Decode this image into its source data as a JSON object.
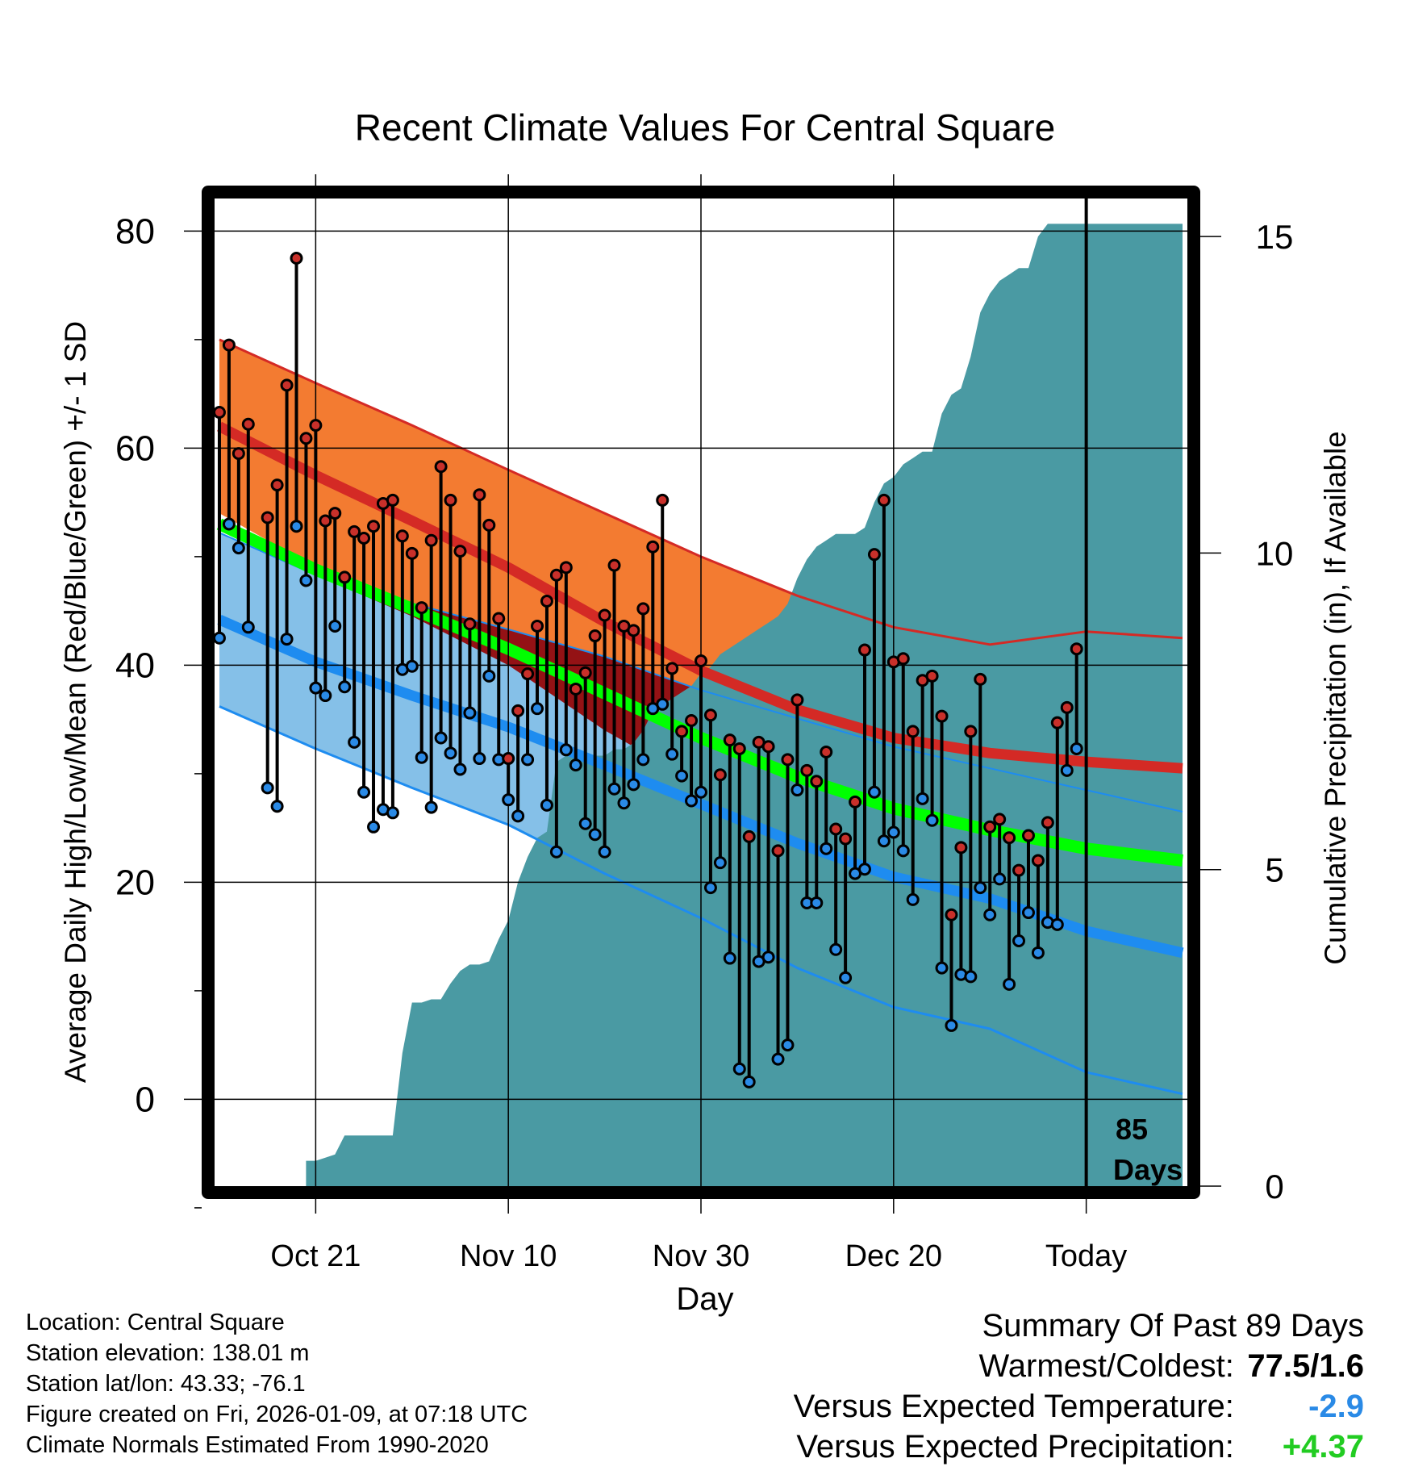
{
  "colors": {
    "orange": "#f37b31",
    "light_blue": "#85c0e8",
    "dark_red": "#941215",
    "green": "#00ff00",
    "blue_line": "#1e8cf0",
    "red_line": "#d42a25",
    "precip": "#4a9aa3",
    "high_dot": "#c8302a",
    "low_dot": "#2a8ae6",
    "anom_temp": "#2a8ae6",
    "anom_precip": "#22cc22"
  },
  "chart_data": {
    "type": "line",
    "title": "Recent Climate Values For Central Square",
    "xlabel": "Day",
    "ylabel_left": "Average Daily High/Low/Mean (Red/Blue/Green) +/- 1 SD",
    "ylabel_right": "Cumulative Precipitation (in), If Available",
    "xlim": [
      -10.5,
      90.5
    ],
    "ylim_left": [
      -8,
      83
    ],
    "ylim_right": [
      0,
      15.6
    ],
    "x_ticks": [
      {
        "x": 0,
        "label": "Oct 21"
      },
      {
        "x": 20,
        "label": "Nov 10"
      },
      {
        "x": 40,
        "label": "Nov 30"
      },
      {
        "x": 60,
        "label": "Dec 20"
      },
      {
        "x": 80,
        "label": "Today"
      }
    ],
    "y_ticks_left": [
      0,
      20,
      40,
      60,
      80
    ],
    "y_ticks_right": [
      0,
      5,
      10,
      15
    ],
    "today_x": 80,
    "today_annotation": [
      "85",
      "Days"
    ],
    "normals": {
      "x": [
        -10,
        0,
        10,
        20,
        30,
        40,
        50,
        60,
        70,
        80,
        90
      ],
      "high_mean": [
        62,
        57.5,
        53.3,
        49,
        44,
        39.5,
        35.9,
        33.3,
        31.9,
        31.1,
        30.5
      ],
      "high_sd": [
        8,
        8.5,
        8.8,
        9,
        10,
        10.5,
        10.5,
        10.2,
        10,
        12,
        12
      ],
      "low_mean": [
        44.2,
        40.3,
        37.2,
        34.3,
        30.8,
        27.2,
        23.6,
        20.5,
        18.5,
        15.5,
        13.5
      ],
      "low_sd": [
        8,
        8,
        8.5,
        9,
        10,
        10.5,
        11.5,
        12,
        12,
        13,
        13
      ],
      "mean": [
        53,
        48.8,
        45.2,
        41.5,
        37.4,
        33.3,
        29.7,
        26.8,
        24.8,
        23.1,
        22
      ]
    },
    "observations": [
      {
        "x": -10,
        "high": 63.3,
        "low": 42.5
      },
      {
        "x": -9,
        "high": 69.5,
        "low": 53
      },
      {
        "x": -8,
        "high": 59.5,
        "low": 50.8
      },
      {
        "x": -7,
        "high": 62.2,
        "low": 43.5
      },
      {
        "x": -5,
        "high": 53.6,
        "low": 28.7
      },
      {
        "x": -4,
        "high": 56.6,
        "low": 27
      },
      {
        "x": -3,
        "high": 65.8,
        "low": 42.4
      },
      {
        "x": -2,
        "high": 77.5,
        "low": 52.8
      },
      {
        "x": -1,
        "high": 60.9,
        "low": 47.8
      },
      {
        "x": 0,
        "high": 62.1,
        "low": 37.9
      },
      {
        "x": 1,
        "high": 53.3,
        "low": 37.2
      },
      {
        "x": 2,
        "high": 54,
        "low": 43.6
      },
      {
        "x": 3,
        "high": 48.1,
        "low": 38
      },
      {
        "x": 4,
        "high": 52.3,
        "low": 32.9
      },
      {
        "x": 5,
        "high": 51.7,
        "low": 28.3
      },
      {
        "x": 6,
        "high": 52.8,
        "low": 25.1
      },
      {
        "x": 7,
        "high": 54.9,
        "low": 26.7
      },
      {
        "x": 8,
        "high": 55.2,
        "low": 26.4
      },
      {
        "x": 9,
        "high": 51.9,
        "low": 39.6
      },
      {
        "x": 10,
        "high": 50.3,
        "low": 39.9
      },
      {
        "x": 11,
        "high": 45.3,
        "low": 31.5
      },
      {
        "x": 12,
        "high": 51.5,
        "low": 26.9
      },
      {
        "x": 13,
        "high": 58.3,
        "low": 33.3
      },
      {
        "x": 14,
        "high": 55.2,
        "low": 31.9
      },
      {
        "x": 15,
        "high": 50.5,
        "low": 30.4
      },
      {
        "x": 16,
        "high": 43.8,
        "low": 35.6
      },
      {
        "x": 17,
        "high": 55.7,
        "low": 31.4
      },
      {
        "x": 18,
        "high": 52.9,
        "low": 39
      },
      {
        "x": 19,
        "high": 44.3,
        "low": 31.3
      },
      {
        "x": 20,
        "high": 31.4,
        "low": 27.6
      },
      {
        "x": 21,
        "high": 35.8,
        "low": 26.1
      },
      {
        "x": 22,
        "high": 39.2,
        "low": 31.3
      },
      {
        "x": 23,
        "high": 43.6,
        "low": 36
      },
      {
        "x": 24,
        "high": 45.9,
        "low": 27.1
      },
      {
        "x": 25,
        "high": 48.3,
        "low": 22.8
      },
      {
        "x": 26,
        "high": 49,
        "low": 32.2
      },
      {
        "x": 27,
        "high": 37.8,
        "low": 30.8
      },
      {
        "x": 28,
        "high": 39.3,
        "low": 25.4
      },
      {
        "x": 29,
        "high": 42.7,
        "low": 24.4
      },
      {
        "x": 30,
        "high": 44.6,
        "low": 22.8
      },
      {
        "x": 31,
        "high": 49.2,
        "low": 28.6
      },
      {
        "x": 32,
        "high": 43.6,
        "low": 27.3
      },
      {
        "x": 33,
        "high": 43.2,
        "low": 29
      },
      {
        "x": 34,
        "high": 45.2,
        "low": 31.3
      },
      {
        "x": 35,
        "high": 50.9,
        "low": 36
      },
      {
        "x": 36,
        "high": 55.2,
        "low": 36.4
      },
      {
        "x": 37,
        "high": 39.7,
        "low": 31.8
      },
      {
        "x": 38,
        "high": 33.9,
        "low": 29.8
      },
      {
        "x": 39,
        "high": 34.9,
        "low": 27.5
      },
      {
        "x": 40,
        "high": 40.4,
        "low": 28.3
      },
      {
        "x": 41,
        "high": 35.4,
        "low": 19.5
      },
      {
        "x": 42,
        "high": 29.9,
        "low": 21.8
      },
      {
        "x": 43,
        "high": 33.1,
        "low": 13
      },
      {
        "x": 44,
        "high": 32.3,
        "low": 2.8
      },
      {
        "x": 45,
        "high": 24.2,
        "low": 1.6
      },
      {
        "x": 46,
        "high": 32.9,
        "low": 12.7
      },
      {
        "x": 47,
        "high": 32.5,
        "low": 13.1
      },
      {
        "x": 48,
        "high": 22.9,
        "low": 3.7
      },
      {
        "x": 49,
        "high": 31.3,
        "low": 5
      },
      {
        "x": 50,
        "high": 36.8,
        "low": 28.5
      },
      {
        "x": 51,
        "high": 30.3,
        "low": 18.1
      },
      {
        "x": 52,
        "high": 29.3,
        "low": 18.1
      },
      {
        "x": 53,
        "high": 32,
        "low": 23.1
      },
      {
        "x": 54,
        "high": 24.9,
        "low": 13.8
      },
      {
        "x": 55,
        "high": 24,
        "low": 11.2
      },
      {
        "x": 56,
        "high": 27.4,
        "low": 20.8
      },
      {
        "x": 57,
        "high": 41.4,
        "low": 21.2
      },
      {
        "x": 58,
        "high": 50.2,
        "low": 28.3
      },
      {
        "x": 59,
        "high": 55.2,
        "low": 23.8
      },
      {
        "x": 60,
        "high": 40.3,
        "low": 24.6
      },
      {
        "x": 61,
        "high": 40.6,
        "low": 22.9
      },
      {
        "x": 62,
        "high": 33.9,
        "low": 18.4
      },
      {
        "x": 63,
        "high": 38.6,
        "low": 27.7
      },
      {
        "x": 64,
        "high": 39,
        "low": 25.7
      },
      {
        "x": 65,
        "high": 35.3,
        "low": 12.1
      },
      {
        "x": 66,
        "high": 17,
        "low": 6.8
      },
      {
        "x": 67,
        "high": 23.2,
        "low": 11.5
      },
      {
        "x": 68,
        "high": 33.9,
        "low": 11.3
      },
      {
        "x": 69,
        "high": 38.7,
        "low": 19.5
      },
      {
        "x": 70,
        "high": 25.1,
        "low": 17
      },
      {
        "x": 71,
        "high": 25.8,
        "low": 20.3
      },
      {
        "x": 72,
        "high": 24.1,
        "low": 10.6
      },
      {
        "x": 73,
        "high": 21.1,
        "low": 14.6
      },
      {
        "x": 74,
        "high": 24.3,
        "low": 17.2
      },
      {
        "x": 75,
        "high": 22,
        "low": 13.5
      },
      {
        "x": 76,
        "high": 25.5,
        "low": 16.3
      },
      {
        "x": 77,
        "high": 34.7,
        "low": 16.1
      },
      {
        "x": 78,
        "high": 36.1,
        "low": 30.3
      },
      {
        "x": 79,
        "high": 41.5,
        "low": 32.3
      }
    ],
    "precip_cumulative": {
      "x": [
        -1,
        0,
        1,
        2,
        3,
        4,
        5,
        6,
        7,
        8,
        9,
        10,
        11,
        12,
        13,
        14,
        15,
        16,
        17,
        18,
        19,
        20,
        21,
        22,
        23,
        24,
        25,
        26,
        27,
        28,
        29,
        30,
        31,
        32,
        33,
        34,
        35,
        36,
        37,
        38,
        39,
        40,
        41,
        42,
        43,
        44,
        45,
        46,
        47,
        48,
        49,
        50,
        51,
        52,
        53,
        54,
        55,
        56,
        57,
        58,
        59,
        60,
        61,
        62,
        63,
        64,
        65,
        66,
        67,
        68,
        69,
        70,
        71,
        72,
        73,
        74,
        75,
        76,
        77,
        78,
        79,
        80,
        90
      ],
      "y": [
        0.4,
        0.4,
        0.45,
        0.5,
        0.8,
        0.8,
        0.8,
        0.8,
        0.8,
        0.8,
        2.1,
        2.9,
        2.9,
        2.95,
        2.95,
        3.2,
        3.4,
        3.5,
        3.5,
        3.55,
        3.9,
        4.2,
        4.8,
        5.2,
        5.5,
        5.6,
        6.7,
        6.8,
        6.8,
        6.8,
        6.8,
        6.8,
        6.9,
        6.9,
        7.0,
        7.2,
        7.5,
        7.6,
        7.7,
        7.8,
        7.9,
        8.1,
        8.2,
        8.4,
        8.5,
        8.6,
        8.7,
        8.8,
        8.9,
        9.0,
        9.2,
        9.6,
        9.9,
        10.1,
        10.2,
        10.3,
        10.3,
        10.3,
        10.4,
        10.8,
        11.1,
        11.2,
        11.4,
        11.5,
        11.6,
        11.6,
        12.2,
        12.5,
        12.6,
        13.1,
        13.8,
        14.1,
        14.3,
        14.4,
        14.5,
        14.5,
        15.0,
        15.2,
        15.2,
        15.2,
        15.2,
        15.2,
        15.2
      ]
    }
  },
  "info": {
    "location": "Location: Central Square",
    "elevation": "Station elevation: 138.01 m",
    "latlon": "Station lat/lon: 43.33; -76.1",
    "created": "Figure created on Fri, 2026-01-09, at 07:18 UTC",
    "normals": "Climate Normals Estimated From 1990-2020"
  },
  "summary": {
    "heading": "Summary Of Past 89 Days",
    "warmest_label": "Warmest/Coldest:",
    "warmest_value": "77.5/1.6",
    "temp_label": "Versus Expected Temperature:",
    "temp_value": "-2.9",
    "precip_label": "Versus Expected Precipitation:",
    "precip_value": "+4.37"
  }
}
